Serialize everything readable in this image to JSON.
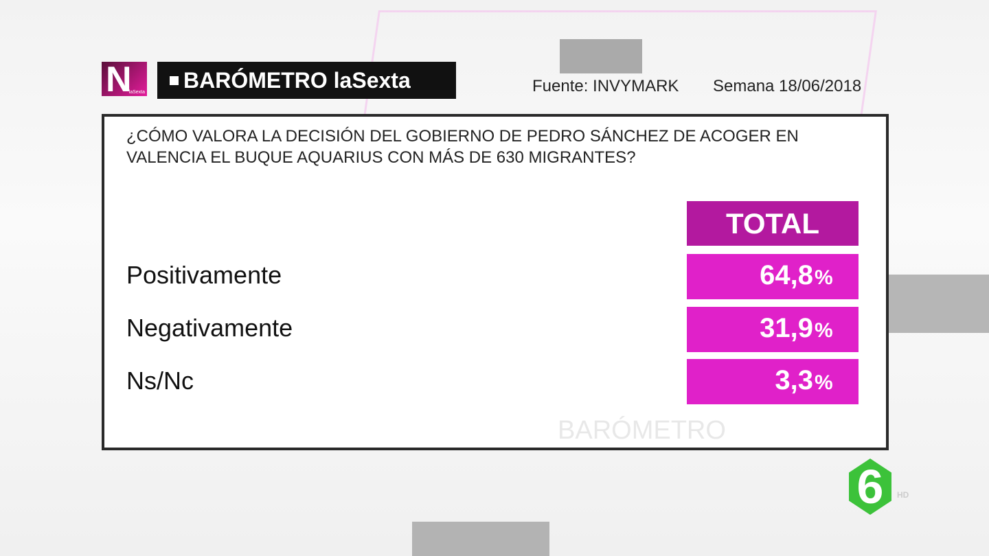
{
  "logo": {
    "letter": "N",
    "sub": "laSexta"
  },
  "header": {
    "title": "BARÓMETRO laSexta",
    "source": "Fuente: INVYMARK",
    "week": "Semana 18/06/2018"
  },
  "question": "¿CÓMO VALORA LA DECISIÓN DEL GOBIERNO DE PEDRO SÁNCHEZ DE ACOGER EN VALENCIA EL BUQUE AQUARIUS CON MÁS DE 630 MIGRANTES?",
  "table": {
    "header": "TOTAL",
    "rows": [
      {
        "label": "Positivamente",
        "value": "64,8",
        "unit": "%"
      },
      {
        "label": "Negativamente",
        "value": "31,9",
        "unit": "%"
      },
      {
        "label": "Ns/Nc",
        "value": "3,3",
        "unit": "%"
      }
    ]
  },
  "watermark": "BARÓMETRO",
  "channel": {
    "logo": "6",
    "hd": "HD"
  }
}
